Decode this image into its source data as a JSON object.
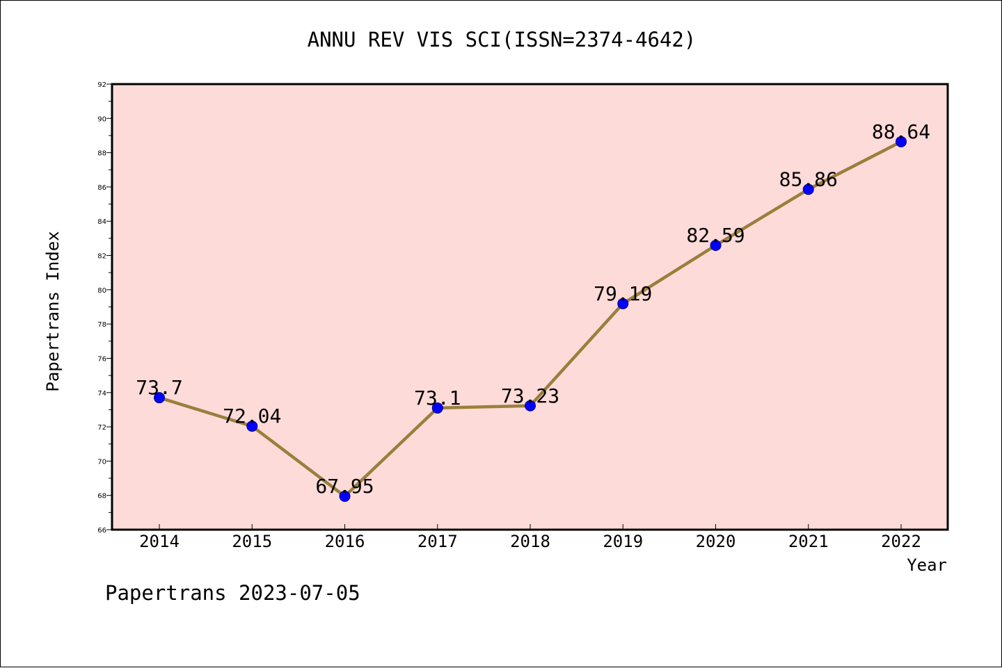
{
  "chart_data": {
    "type": "line",
    "title": "ANNU REV VIS SCI(ISSN=2374-4642)",
    "xlabel": "Year",
    "ylabel": "Papertrans Index",
    "footer": "Papertrans 2023-07-05",
    "categories": [
      "2014",
      "2015",
      "2016",
      "2017",
      "2018",
      "2019",
      "2020",
      "2021",
      "2022"
    ],
    "values": [
      73.7,
      72.04,
      67.95,
      73.1,
      73.23,
      79.19,
      82.59,
      85.86,
      88.64
    ],
    "data_labels": [
      "73.7",
      "72.04",
      "67.95",
      "73.1",
      "73.23",
      "79.19",
      "82.59",
      "85.86",
      "88.64"
    ],
    "ylim": [
      66,
      92
    ],
    "yticks": [
      "66",
      "68",
      "70",
      "72",
      "74",
      "76",
      "78",
      "80",
      "82",
      "84",
      "86",
      "88",
      "90",
      "92"
    ],
    "grid": false,
    "colors": {
      "plot_background": "#fddbd9",
      "line": "#9a7f3c",
      "marker": "#0000ff",
      "axis": "#000000"
    }
  }
}
